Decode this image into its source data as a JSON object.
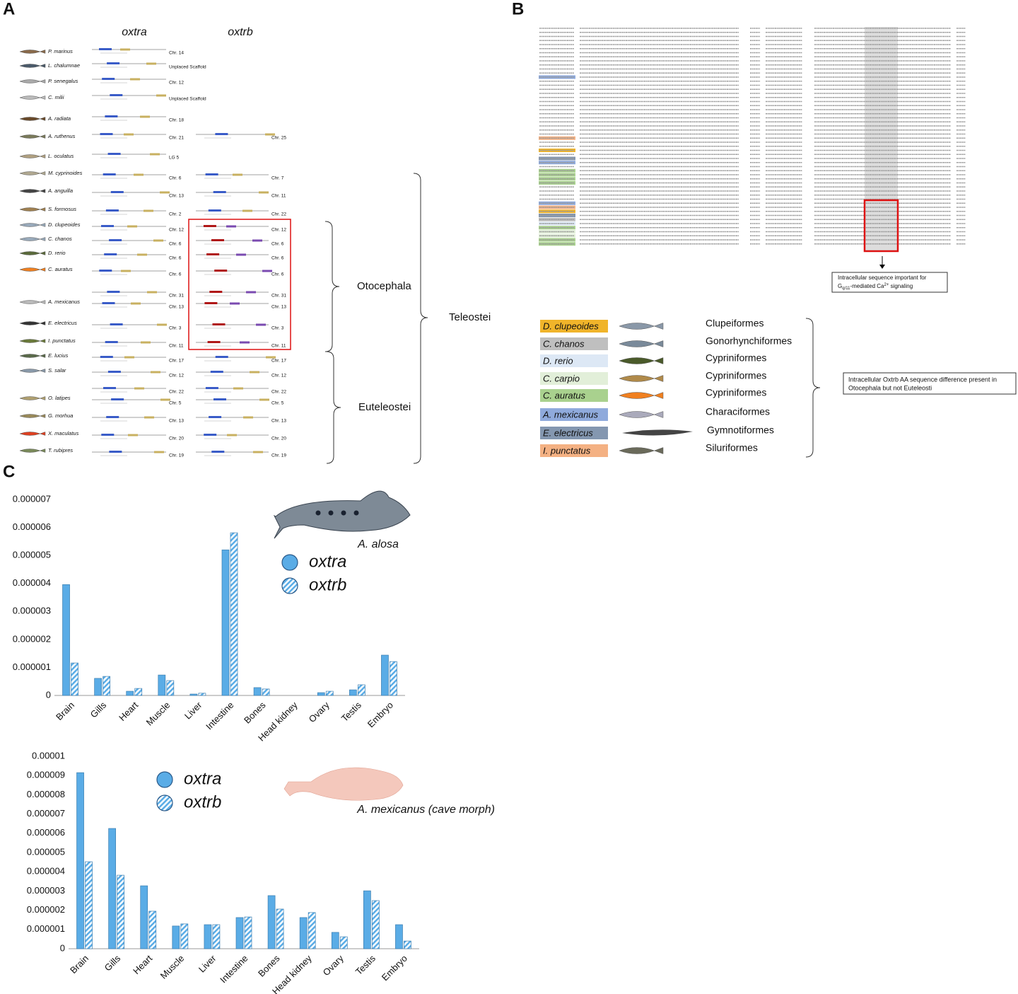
{
  "panel_a": {
    "label": "A",
    "headers": [
      "oxtra",
      "oxtrb"
    ],
    "rows": [
      {
        "species": "P. marinus",
        "oxtra": "Chr. 14",
        "oxtrb": null
      },
      {
        "species": "L. chalumnae",
        "oxtra": "Unplaced Scaffold",
        "oxtrb": null
      },
      {
        "species": "P. senegalus",
        "oxtra": "Chr. 12",
        "oxtrb": null
      },
      {
        "species": "C. milii",
        "oxtra": "Unplaced Scaffold",
        "oxtrb": null
      },
      {
        "species": "A. radiata",
        "oxtra": "Chr. 18",
        "oxtrb": null
      },
      {
        "species": "A. ruthenus",
        "oxtra": "Chr. 21",
        "oxtrb": "Chr. 25"
      },
      {
        "species": "L. oculatus",
        "oxtra": "LG 5",
        "oxtrb": null
      },
      {
        "species": "M. cyprinoides",
        "oxtra": "Chr. 6",
        "oxtrb": "Chr. 7"
      },
      {
        "species": "A. anguilla",
        "oxtra": "Chr. 13",
        "oxtrb": "Chr. 11"
      },
      {
        "species": "S. formosus",
        "oxtra": "Chr. 2",
        "oxtrb": "Chr. 22"
      },
      {
        "species": "D. clupeoides",
        "oxtra": "Chr. 12",
        "oxtrb": "Chr. 12"
      },
      {
        "species": "C. chanos",
        "oxtra": "Chr. 6",
        "oxtrb": "Chr. 6"
      },
      {
        "species": "D. rerio",
        "oxtra": "Chr. 6",
        "oxtrb": "Chr. 6"
      },
      {
        "species": "C. auratus",
        "oxtra": "Chr. 6",
        "oxtrb": "Chr. 6"
      },
      {
        "species": null,
        "oxtra": "Chr. 31",
        "oxtrb": "Chr. 31"
      },
      {
        "species": "A. mexicanus",
        "oxtra": "Chr. 13",
        "oxtrb": "Chr. 13"
      },
      {
        "species": "E. electricus",
        "oxtra": "Chr. 3",
        "oxtrb": "Chr. 3"
      },
      {
        "species": "I. punctatus",
        "oxtra": "Chr. 11",
        "oxtrb": "Chr. 11"
      },
      {
        "species": "E. lucius",
        "oxtra": "Chr. 17",
        "oxtrb": "Chr. 17"
      },
      {
        "species": "S. salar",
        "oxtra": "Chr. 12",
        "oxtrb": "Chr. 12"
      },
      {
        "species": null,
        "oxtra": "Chr. 22",
        "oxtrb": "Chr. 22"
      },
      {
        "species": "O. latipes",
        "oxtra": "Chr. 5",
        "oxtrb": "Chr. 5"
      },
      {
        "species": "G. morhua",
        "oxtra": "Chr. 13",
        "oxtrb": "Chr. 13"
      },
      {
        "species": "X. maculatus",
        "oxtra": "Chr. 20",
        "oxtrb": "Chr. 20"
      },
      {
        "species": "T. rubipres",
        "oxtra": "Chr. 19",
        "oxtrb": "Chr. 19"
      }
    ],
    "clades": [
      "Otocephala",
      "Euteleostei",
      "Teleostei"
    ]
  },
  "panel_b": {
    "label": "B",
    "signal_note": {
      "line1": "Intracellular sequence important for",
      "g": "G",
      "sub": "q/11",
      "mid": "-mediated Ca",
      "sup": "2+",
      "end": " signaling"
    },
    "species": [
      {
        "name": "D. clupeoides",
        "color": "#f0b42a",
        "order": "Clupeiformes"
      },
      {
        "name": "C. chanos",
        "color": "#bfbfbf",
        "order": "Gonorhynchiformes"
      },
      {
        "name": "D. rerio",
        "color": "#dde8f5",
        "order": "Cypriniformes"
      },
      {
        "name": "C. carpio",
        "color": "#e2efd9",
        "order": "Cypriniformes"
      },
      {
        "name": "C. auratus",
        "color": "#a9d18e",
        "order": "Cypriniformes"
      },
      {
        "name": "A. mexicanus",
        "color": "#8faadc",
        "order": "Characiformes"
      },
      {
        "name": "E. electricus",
        "color": "#8497b0",
        "order": "Gymnotiformes"
      },
      {
        "name": "I. punctatus",
        "color": "#f4b183",
        "order": "Siluriformes"
      }
    ],
    "difference_note": [
      "Intracellular Oxtrb AA sequence difference present in",
      "Otocephala but not Euteleosti"
    ]
  },
  "panel_c": {
    "label": "C"
  },
  "chart_data": [
    {
      "type": "bar",
      "annotation": "A. alosa",
      "categories": [
        "Brain",
        "Gills",
        "Heart",
        "Muscle",
        "Liver",
        "Intestine",
        "Bones",
        "Head kidney",
        "Ovary",
        "Testis",
        "Embryo"
      ],
      "series": [
        {
          "name": "oxtra",
          "color": "#5aace6",
          "style": "solid",
          "values": [
            3.96e-06,
            6.1e-07,
            1.5e-07,
            7.3e-07,
            5e-08,
            5.2e-06,
            2.8e-07,
            0,
            1e-07,
            2e-07,
            1.44e-06
          ]
        },
        {
          "name": "oxtrb",
          "color": "#5aace6",
          "style": "hatched",
          "values": [
            1.16e-06,
            6.8e-07,
            2.5e-07,
            5.3e-07,
            8e-08,
            5.81e-06,
            2.3e-07,
            0,
            1.5e-07,
            3.8e-07,
            1.21e-06
          ]
        }
      ],
      "ylim": [
        0,
        7e-06
      ],
      "yticks": [
        0,
        1e-06,
        2e-06,
        3e-06,
        4e-06,
        5e-06,
        6e-06,
        7e-06
      ]
    },
    {
      "type": "bar",
      "annotation": "A. mexicanus (cave morph)",
      "categories": [
        "Brain",
        "Gills",
        "Heart",
        "Muscle",
        "Liver",
        "Intestine",
        "Bones",
        "Head kidney",
        "Ovary",
        "Testis",
        "Embryo"
      ],
      "series": [
        {
          "name": "oxtra",
          "color": "#5aace6",
          "style": "solid",
          "values": [
            9.15e-06,
            6.25e-06,
            3.27e-06,
            1.18e-06,
            1.25e-06,
            1.62e-06,
            2.76e-06,
            1.62e-06,
            8.5e-07,
            3.01e-06,
            1.25e-06
          ]
        },
        {
          "name": "oxtrb",
          "color": "#5aace6",
          "style": "hatched",
          "values": [
            4.52e-06,
            3.82e-06,
            1.95e-06,
            1.29e-06,
            1.25e-06,
            1.65e-06,
            2.06e-06,
            1.88e-06,
            6.2e-07,
            2.5e-06,
            4e-07
          ]
        }
      ],
      "ylim": [
        0,
        1e-05
      ],
      "yticks": [
        0,
        1e-06,
        2e-06,
        3e-06,
        4e-06,
        5e-06,
        6e-06,
        7e-06,
        8e-06,
        9e-06,
        1e-05
      ]
    }
  ]
}
